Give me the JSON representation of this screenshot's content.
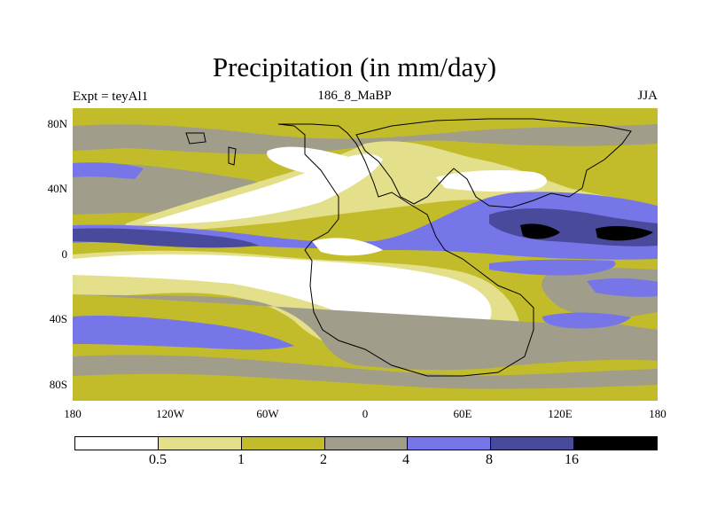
{
  "figure": {
    "title": "Precipitation (in mm/day)",
    "left_string": "Expt = teyAl1",
    "center_string": "186_8_MaBP",
    "right_string": "JJA"
  },
  "axes": {
    "lat_ticks": [
      "80N",
      "40N",
      "0",
      "40S",
      "80S"
    ],
    "lon_ticks": [
      "180",
      "120W",
      "60W",
      "0",
      "60E",
      "120E",
      "180"
    ]
  },
  "colorbar": {
    "colors": [
      "#ffffff",
      "#e3df8a",
      "#c3bc2a",
      "#a09d8a",
      "#7676e8",
      "#4a4a9c",
      "#000000"
    ],
    "labels": [
      "0.5",
      "1",
      "2",
      "4",
      "8",
      "16"
    ]
  },
  "chart_data": {
    "type": "heatmap",
    "title": "Precipitation (in mm/day)",
    "subtitle": "186_8_MaBP",
    "experiment": "Expt = teyAl1",
    "season": "JJA",
    "variable_units": "mm/day",
    "x_range": [
      -180,
      180
    ],
    "y_range": [
      -90,
      90
    ],
    "contour_levels": [
      0.5,
      1,
      2,
      4,
      8,
      16
    ]
  }
}
